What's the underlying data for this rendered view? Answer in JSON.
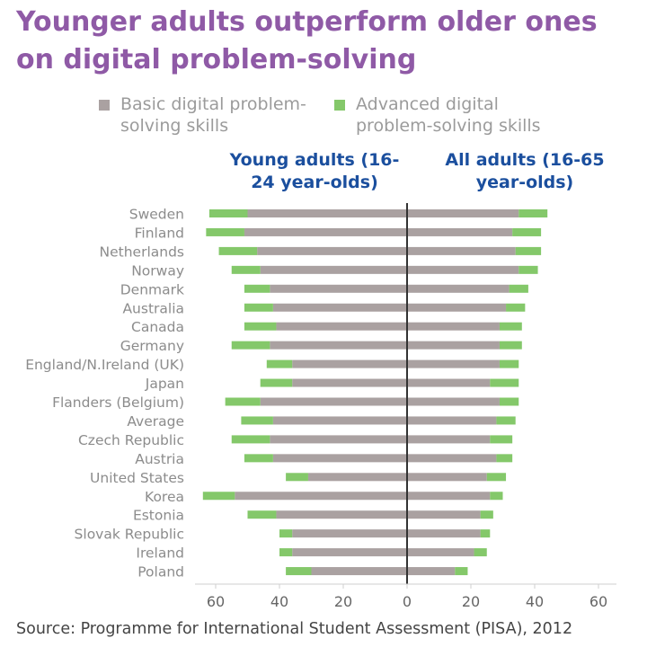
{
  "title": "Younger adults outperform older ones on digital problem-solving",
  "legend": [
    {
      "label": "Basic digital problem-solving skills",
      "color": "#aaa1a1"
    },
    {
      "label": "Advanced digital problem-solving skills",
      "color": "#84c86a"
    }
  ],
  "panels": {
    "left": "Young adults (16-24 year-olds)",
    "right": "All adults (16-65 year-olds)"
  },
  "source": "Source: Programme for International Student Assessment (PISA), 2012",
  "chart_data": {
    "type": "bar",
    "orientation": "horizontal-diverging",
    "stacked": true,
    "categories": [
      "Sweden",
      "Finland",
      "Netherlands",
      "Norway",
      "Denmark",
      "Australia",
      "Canada",
      "Germany",
      "England/N.Ireland (UK)",
      "Japan",
      "Flanders (Belgium)",
      "Average",
      "Czech Republic",
      "Austria",
      "United States",
      "Korea",
      "Estonia",
      "Slovak Republic",
      "Ireland",
      "Poland"
    ],
    "young_adults": {
      "basic": [
        50,
        51,
        47,
        46,
        43,
        42,
        41,
        43,
        36,
        36,
        46,
        42,
        43,
        42,
        31,
        54,
        41,
        36,
        36,
        30
      ],
      "advanced": [
        12,
        12,
        12,
        9,
        8,
        9,
        10,
        12,
        8,
        10,
        11,
        10,
        12,
        9,
        7,
        10,
        9,
        4,
        4,
        8
      ]
    },
    "all_adults": {
      "basic": [
        35,
        33,
        34,
        35,
        32,
        31,
        29,
        29,
        29,
        26,
        29,
        28,
        26,
        28,
        25,
        26,
        23,
        23,
        21,
        15
      ],
      "advanced": [
        9,
        9,
        8,
        6,
        6,
        6,
        7,
        7,
        6,
        9,
        6,
        6,
        7,
        5,
        6,
        4,
        4,
        3,
        4,
        4
      ]
    },
    "xticks": [
      "60",
      "40",
      "20",
      "0",
      "20",
      "40",
      "60"
    ],
    "xlim": [
      -60,
      60
    ]
  }
}
